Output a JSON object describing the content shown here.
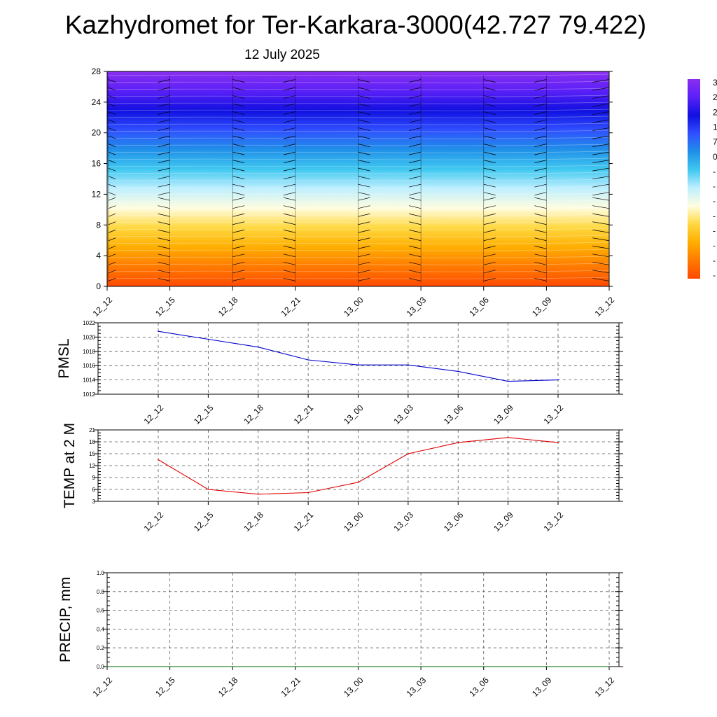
{
  "header": {
    "title": "Kazhydromet for Ter-Karkara-3000(42.727 79.422)",
    "subtitle": "12 July 2025"
  },
  "colors": {
    "pmsl_line": "#0000cc",
    "temp_line": "#dd0000",
    "precip_line": "#006400",
    "cross_section_palette": [
      "#ff4a00",
      "#ff7a00",
      "#ffae00",
      "#ffd840",
      "#fffde0",
      "#bfefff",
      "#40c8f0",
      "#2090e8",
      "#3050ff",
      "#1010e0",
      "#5a20f8",
      "#8a2ef0"
    ]
  },
  "colorbar": {
    "labels": [
      "3",
      "2",
      "2",
      "1",
      "7",
      "0",
      "-",
      "-",
      "-",
      "-",
      "-",
      "-",
      "-",
      "-"
    ]
  },
  "chart_data": [
    {
      "type": "heatmap",
      "name": "cross-section",
      "x": [
        "12_12",
        "12_15",
        "12_18",
        "12_21",
        "13_00",
        "13_03",
        "13_06",
        "13_09",
        "13_12"
      ],
      "yticks": [
        "0",
        "4",
        "8",
        "12",
        "16",
        "20",
        "24",
        "28"
      ],
      "ylim": [
        0,
        28
      ],
      "grid": false,
      "has_wind_barbs": true
    },
    {
      "type": "line",
      "name": "pmsl",
      "ylabel": "PMSL",
      "x": [
        "12_12",
        "12_15",
        "12_18",
        "12_21",
        "13_00",
        "13_03",
        "13_06",
        "13_09",
        "13_12"
      ],
      "values": [
        1020.8,
        1019.7,
        1018.6,
        1016.8,
        1016.1,
        1016.1,
        1015.2,
        1013.8,
        1014.0
      ],
      "ylim": [
        1012,
        1022
      ],
      "yticks": [
        "1012",
        "1014",
        "1016",
        "1018",
        "1020",
        "1022"
      ],
      "grid": true
    },
    {
      "type": "line",
      "name": "temp2m",
      "ylabel": "TEMP at 2 M",
      "x": [
        "12_12",
        "12_15",
        "12_18",
        "12_21",
        "13_00",
        "13_03",
        "13_06",
        "13_09",
        "13_12"
      ],
      "values": [
        13.5,
        6.0,
        4.8,
        5.2,
        7.8,
        15.0,
        17.8,
        19.1,
        17.8
      ],
      "ylim": [
        3,
        21
      ],
      "yticks": [
        "3",
        "6",
        "9",
        "12",
        "15",
        "18",
        "21"
      ],
      "grid": true
    },
    {
      "type": "line",
      "name": "precip",
      "ylabel": "PRECIP, mm",
      "x": [
        "12_12",
        "12_15",
        "12_18",
        "12_21",
        "13_00",
        "13_03",
        "13_06",
        "13_09",
        "13_12"
      ],
      "values": [
        0,
        0,
        0,
        0,
        0,
        0,
        0,
        0,
        0
      ],
      "ylim": [
        0,
        1
      ],
      "yticks": [
        "0.0",
        "0.2",
        "0.4",
        "0.6",
        "0.8",
        "1.0"
      ],
      "grid": true
    }
  ]
}
